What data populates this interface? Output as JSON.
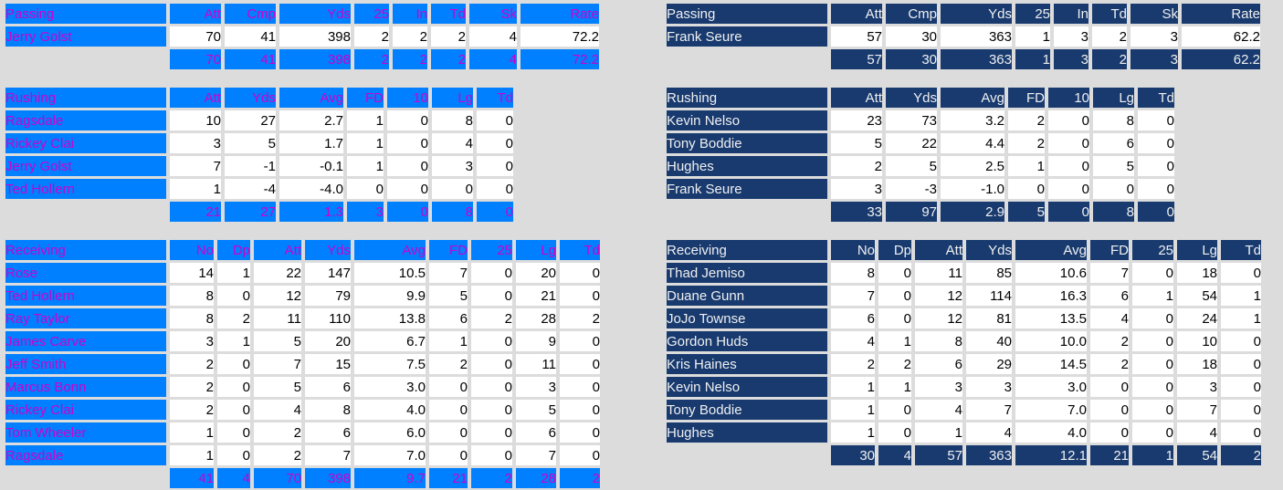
{
  "report": {
    "left_team": {
      "colors": {
        "header_bg": "#0080FF",
        "header_text": "#CC00CC"
      },
      "passing": {
        "title": "Passing",
        "columns": [
          "Att",
          "Cmp",
          "Yds",
          "25",
          "In",
          "Td",
          "Sk",
          "Rate"
        ],
        "players": [
          {
            "name": "Jerry Golst",
            "values": [
              "70",
              "41",
              "398",
              "2",
              "2",
              "2",
              "4",
              "72.2"
            ]
          }
        ],
        "totals": [
          "70",
          "41",
          "398",
          "2",
          "2",
          "2",
          "4",
          "72.2"
        ]
      },
      "rushing": {
        "title": "Rushing",
        "columns": [
          "Att",
          "Yds",
          "Avg",
          "FD",
          "10",
          "Lg",
          "Td"
        ],
        "players": [
          {
            "name": "Ragsdale",
            "values": [
              "10",
              "27",
              "2.7",
              "1",
              "0",
              "8",
              "0"
            ]
          },
          {
            "name": "Rickey Clai",
            "values": [
              "3",
              "5",
              "1.7",
              "1",
              "0",
              "4",
              "0"
            ]
          },
          {
            "name": "Jerry Golst",
            "values": [
              "7",
              "-1",
              "-0.1",
              "1",
              "0",
              "3",
              "0"
            ]
          },
          {
            "name": "Ted Hollern",
            "values": [
              "1",
              "-4",
              "-4.0",
              "0",
              "0",
              "0",
              "0"
            ]
          }
        ],
        "totals": [
          "21",
          "27",
          "1.3",
          "3",
          "0",
          "8",
          "0"
        ]
      },
      "receiving": {
        "title": "Receiving",
        "columns": [
          "No",
          "Dp",
          "Att",
          "Yds",
          "Avg",
          "FD",
          "25",
          "Lg",
          "Td"
        ],
        "players": [
          {
            "name": "Rose",
            "values": [
              "14",
              "1",
              "22",
              "147",
              "10.5",
              "7",
              "0",
              "20",
              "0"
            ]
          },
          {
            "name": "Ted Hollern",
            "values": [
              "8",
              "0",
              "12",
              "79",
              "9.9",
              "5",
              "0",
              "21",
              "0"
            ]
          },
          {
            "name": "Ray Taylor",
            "values": [
              "8",
              "2",
              "11",
              "110",
              "13.8",
              "6",
              "2",
              "28",
              "2"
            ]
          },
          {
            "name": "James Carve",
            "values": [
              "3",
              "1",
              "5",
              "20",
              "6.7",
              "1",
              "0",
              "9",
              "0"
            ]
          },
          {
            "name": "Jeff Smith",
            "values": [
              "2",
              "0",
              "7",
              "15",
              "7.5",
              "2",
              "0",
              "11",
              "0"
            ]
          },
          {
            "name": "Marcus Bonn",
            "values": [
              "2",
              "0",
              "5",
              "6",
              "3.0",
              "0",
              "0",
              "3",
              "0"
            ]
          },
          {
            "name": "Rickey Clai",
            "values": [
              "2",
              "0",
              "4",
              "8",
              "4.0",
              "0",
              "0",
              "5",
              "0"
            ]
          },
          {
            "name": "Tom Wheeler",
            "values": [
              "1",
              "0",
              "2",
              "6",
              "6.0",
              "0",
              "0",
              "6",
              "0"
            ]
          },
          {
            "name": "Ragsdale",
            "values": [
              "1",
              "0",
              "2",
              "7",
              "7.0",
              "0",
              "0",
              "7",
              "0"
            ]
          }
        ],
        "totals": [
          "41",
          "4",
          "70",
          "398",
          "9.7",
          "21",
          "2",
          "28",
          "2"
        ]
      }
    },
    "right_team": {
      "colors": {
        "header_bg": "#183A6F",
        "header_text": "#F0F0F0"
      },
      "passing": {
        "title": "Passing",
        "columns": [
          "Att",
          "Cmp",
          "Yds",
          "25",
          "In",
          "Td",
          "Sk",
          "Rate"
        ],
        "players": [
          {
            "name": "Frank Seure",
            "values": [
              "57",
              "30",
              "363",
              "1",
              "3",
              "2",
              "3",
              "62.2"
            ]
          }
        ],
        "totals": [
          "57",
          "30",
          "363",
          "1",
          "3",
          "2",
          "3",
          "62.2"
        ]
      },
      "rushing": {
        "title": "Rushing",
        "columns": [
          "Att",
          "Yds",
          "Avg",
          "FD",
          "10",
          "Lg",
          "Td"
        ],
        "players": [
          {
            "name": "Kevin Nelso",
            "values": [
              "23",
              "73",
              "3.2",
              "2",
              "0",
              "8",
              "0"
            ]
          },
          {
            "name": "Tony Boddie",
            "values": [
              "5",
              "22",
              "4.4",
              "2",
              "0",
              "6",
              "0"
            ]
          },
          {
            "name": "Hughes",
            "values": [
              "2",
              "5",
              "2.5",
              "1",
              "0",
              "5",
              "0"
            ]
          },
          {
            "name": "Frank Seure",
            "values": [
              "3",
              "-3",
              "-1.0",
              "0",
              "0",
              "0",
              "0"
            ]
          }
        ],
        "totals": [
          "33",
          "97",
          "2.9",
          "5",
          "0",
          "8",
          "0"
        ]
      },
      "receiving": {
        "title": "Receiving",
        "columns": [
          "No",
          "Dp",
          "Att",
          "Yds",
          "Avg",
          "FD",
          "25",
          "Lg",
          "Td"
        ],
        "players": [
          {
            "name": "Thad Jemiso",
            "values": [
              "8",
              "0",
              "11",
              "85",
              "10.6",
              "7",
              "0",
              "18",
              "0"
            ]
          },
          {
            "name": "Duane Gunn",
            "values": [
              "7",
              "0",
              "12",
              "114",
              "16.3",
              "6",
              "1",
              "54",
              "1"
            ]
          },
          {
            "name": "JoJo Townse",
            "values": [
              "6",
              "0",
              "12",
              "81",
              "13.5",
              "4",
              "0",
              "24",
              "1"
            ]
          },
          {
            "name": "Gordon Huds",
            "values": [
              "4",
              "1",
              "8",
              "40",
              "10.0",
              "2",
              "0",
              "10",
              "0"
            ]
          },
          {
            "name": "Kris Haines",
            "values": [
              "2",
              "2",
              "6",
              "29",
              "14.5",
              "2",
              "0",
              "18",
              "0"
            ]
          },
          {
            "name": "Kevin Nelso",
            "values": [
              "1",
              "1",
              "3",
              "3",
              "3.0",
              "0",
              "0",
              "3",
              "0"
            ]
          },
          {
            "name": "Tony Boddie",
            "values": [
              "1",
              "0",
              "4",
              "7",
              "7.0",
              "0",
              "0",
              "7",
              "0"
            ]
          },
          {
            "name": "Hughes",
            "values": [
              "1",
              "0",
              "1",
              "4",
              "4.0",
              "0",
              "0",
              "4",
              "0"
            ]
          }
        ],
        "totals": [
          "30",
          "4",
          "57",
          "363",
          "12.1",
          "21",
          "1",
          "54",
          "2"
        ]
      }
    }
  }
}
